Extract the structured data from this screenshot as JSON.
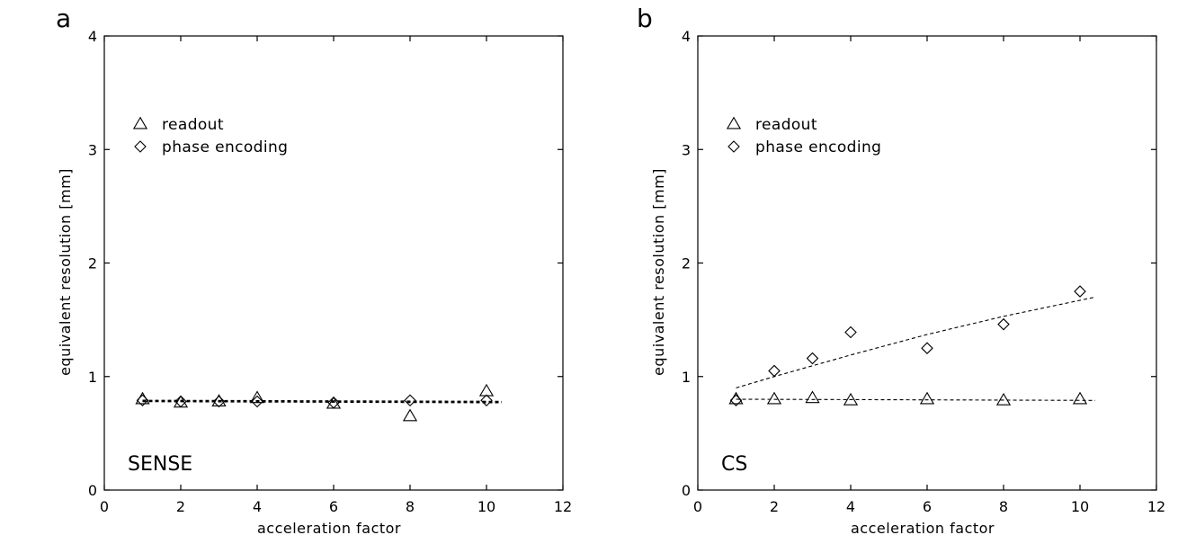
{
  "chart_data": [
    {
      "type": "scatter",
      "panel": "a",
      "method": "SENSE",
      "xlabel": "acceleration factor",
      "ylabel": "equivalent resolution [mm]",
      "xlim": [
        0,
        12
      ],
      "ylim": [
        0,
        4
      ],
      "xticks": [
        0,
        2,
        4,
        6,
        8,
        10,
        12
      ],
      "yticks": [
        0,
        1,
        2,
        3,
        4
      ],
      "legend_position": "upper-left",
      "series": [
        {
          "name": "readout",
          "marker": "triangle",
          "x": [
            1,
            2,
            3,
            4,
            6,
            8,
            10
          ],
          "values": [
            0.8,
            0.77,
            0.78,
            0.81,
            0.76,
            0.65,
            0.87
          ],
          "fit": [
            [
              1,
              0.79
            ],
            [
              10.4,
              0.78
            ]
          ]
        },
        {
          "name": "phase encoding",
          "marker": "diamond",
          "x": [
            1,
            2,
            3,
            4,
            6,
            8,
            10
          ],
          "values": [
            0.79,
            0.78,
            0.78,
            0.78,
            0.77,
            0.79,
            0.79
          ],
          "fit": [
            [
              1,
              0.78
            ],
            [
              10.4,
              0.77
            ]
          ]
        }
      ]
    },
    {
      "type": "scatter",
      "panel": "b",
      "method": "CS",
      "xlabel": "acceleration factor",
      "ylabel": "equivalent resolution [mm]",
      "xlim": [
        0,
        12
      ],
      "ylim": [
        0,
        4
      ],
      "xticks": [
        0,
        2,
        4,
        6,
        8,
        10,
        12
      ],
      "yticks": [
        0,
        1,
        2,
        3,
        4
      ],
      "legend_position": "upper-left",
      "series": [
        {
          "name": "readout",
          "marker": "triangle",
          "x": [
            1,
            2,
            3,
            4,
            6,
            8,
            10
          ],
          "values": [
            0.8,
            0.8,
            0.81,
            0.79,
            0.8,
            0.79,
            0.8
          ],
          "fit": [
            [
              1,
              0.8
            ],
            [
              10.4,
              0.79
            ]
          ]
        },
        {
          "name": "phase encoding",
          "marker": "diamond",
          "x": [
            1,
            2,
            3,
            4,
            6,
            8,
            10
          ],
          "values": [
            0.79,
            1.05,
            1.16,
            1.39,
            1.25,
            1.46,
            1.75
          ],
          "fit": [
            [
              1,
              0.9
            ],
            [
              2,
              1.0
            ],
            [
              4,
              1.19
            ],
            [
              6,
              1.37
            ],
            [
              8,
              1.53
            ],
            [
              10.4,
              1.7
            ]
          ]
        }
      ]
    }
  ]
}
